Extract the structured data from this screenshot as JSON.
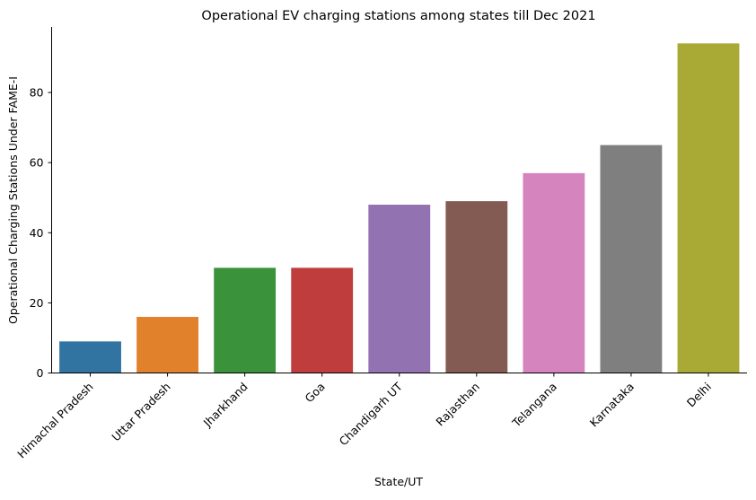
{
  "chart_data": {
    "type": "bar",
    "title": "Operational EV charging stations among states till Dec 2021",
    "xlabel": "State/UT",
    "ylabel": "Operational Charging Stations Under FAME-I",
    "categories": [
      "Himachal Pradesh",
      "Uttar Pradesh",
      "Jharkhand",
      "Goa",
      "Chandigarh UT",
      "Rajasthan",
      "Telangana",
      "Karnataka",
      "Delhi"
    ],
    "values": [
      9,
      16,
      30,
      30,
      48,
      49,
      57,
      65,
      94
    ],
    "colors": [
      "#3274a1",
      "#e1812c",
      "#3a923a",
      "#c03d3e",
      "#9372b2",
      "#845b53",
      "#d684bd",
      "#7f7f7f",
      "#a9aa35"
    ],
    "yticks": [
      0,
      20,
      40,
      60,
      80
    ],
    "ylim": [
      0,
      98.7
    ],
    "grid": false,
    "legend": "none"
  }
}
